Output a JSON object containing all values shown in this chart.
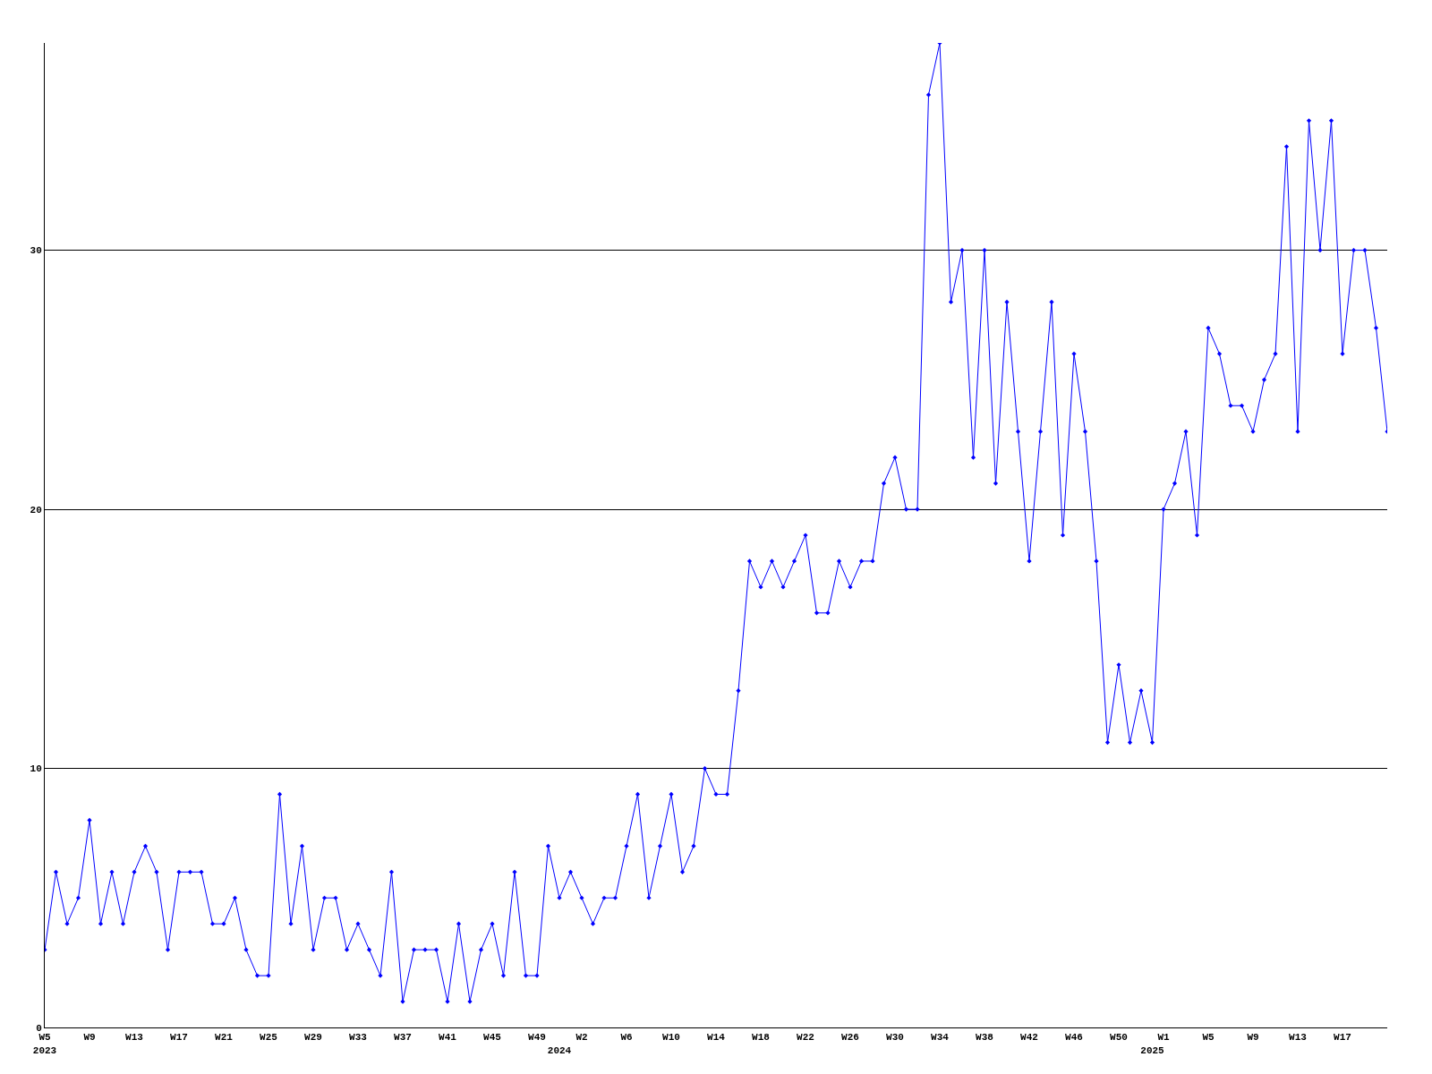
{
  "chart_data": {
    "type": "line",
    "categories": [
      "W5\n2023",
      null,
      null,
      null,
      "W9",
      null,
      null,
      null,
      "W13",
      null,
      null,
      null,
      "W17",
      null,
      null,
      null,
      "W21",
      null,
      null,
      null,
      "W25",
      null,
      null,
      null,
      "W29",
      null,
      null,
      null,
      "W33",
      null,
      null,
      null,
      "W37",
      null,
      null,
      null,
      "W41",
      null,
      null,
      null,
      "W45",
      null,
      null,
      null,
      "W49",
      null,
      "\n2024",
      null,
      "W2",
      null,
      null,
      null,
      "W6",
      null,
      null,
      null,
      "W10",
      null,
      null,
      null,
      "W14",
      null,
      null,
      null,
      "W18",
      null,
      null,
      null,
      "W22",
      null,
      null,
      null,
      "W26",
      null,
      null,
      null,
      "W30",
      null,
      null,
      null,
      "W34",
      null,
      null,
      null,
      "W38",
      null,
      null,
      null,
      "W42",
      null,
      null,
      null,
      "W46",
      null,
      null,
      null,
      "W50",
      null,
      null,
      "\n2025",
      "W1",
      null,
      null,
      null,
      "W5",
      null,
      null,
      null,
      "W9",
      null,
      null,
      null,
      "W13",
      null,
      null,
      null,
      "W17",
      null,
      null,
      null,
      null
    ],
    "series": [
      {
        "color": "#0000ff",
        "values": [
          3,
          6,
          4,
          5,
          8,
          4,
          6,
          4,
          6,
          7,
          6,
          3,
          6,
          6,
          6,
          4,
          4,
          5,
          3,
          2,
          2,
          9,
          4,
          7,
          3,
          5,
          5,
          3,
          4,
          3,
          2,
          6,
          1,
          3,
          3,
          3,
          1,
          4,
          1,
          3,
          4,
          2,
          6,
          2,
          2,
          7,
          5,
          6,
          5,
          4,
          5,
          5,
          7,
          9,
          5,
          7,
          9,
          6,
          7,
          10,
          9,
          9,
          13,
          18,
          17,
          18,
          17,
          18,
          19,
          16,
          16,
          18,
          17,
          18,
          18,
          21,
          22,
          20,
          20,
          36,
          38,
          28,
          30,
          22,
          30,
          21,
          28,
          23,
          18,
          23,
          28,
          19,
          26,
          23,
          18,
          11,
          14,
          11,
          13,
          11,
          20,
          21,
          23,
          19,
          27,
          26,
          24,
          24,
          23,
          25,
          26,
          34,
          23,
          35,
          30,
          35,
          26,
          30,
          30,
          27,
          23
        ]
      }
    ],
    "ylim": [
      0,
      38
    ],
    "yticks": [
      0,
      10,
      20,
      30
    ],
    "grid": "y",
    "marker": "diamond",
    "line_style": "solid"
  }
}
